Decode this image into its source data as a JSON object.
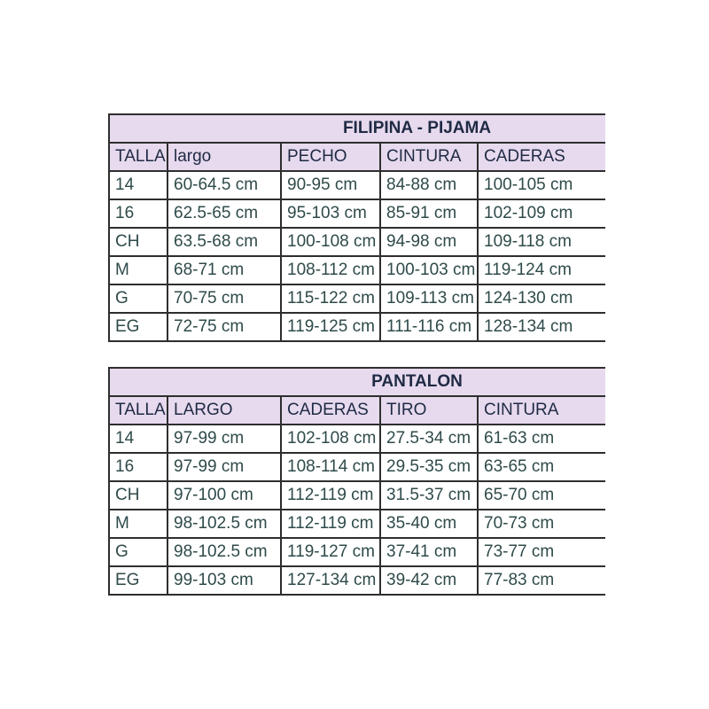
{
  "colors": {
    "background": "#ffffff",
    "header_fill": "#e7daee",
    "header_text": "#1f2a44",
    "data_text": "#2f4a4a",
    "border": "#2e2e2e"
  },
  "chart_data": [
    {
      "type": "table",
      "title": "FILIPINA - PIJAMA",
      "columns": [
        "TALLA",
        "largo",
        "PECHO",
        "CINTURA",
        "CADERAS"
      ],
      "rows": [
        [
          "14",
          "60-64.5 cm",
          "90-95 cm",
          "84-88 cm",
          "100-105 cm"
        ],
        [
          "16",
          "62.5-65 cm",
          "95-103 cm",
          "85-91 cm",
          "102-109 cm"
        ],
        [
          "CH",
          "63.5-68 cm",
          "100-108 cm",
          "94-98 cm",
          "109-118 cm"
        ],
        [
          "M",
          "68-71 cm",
          "108-112 cm",
          "100-103 cm",
          "119-124 cm"
        ],
        [
          "G",
          "70-75 cm",
          "115-122 cm",
          "109-113 cm",
          "124-130 cm"
        ],
        [
          "EG",
          "72-75 cm",
          "119-125 cm",
          "111-116 cm",
          "128-134 cm"
        ]
      ],
      "layout_hints": {
        "header_band": "lavender",
        "grid": "on",
        "unit": "cm"
      }
    },
    {
      "type": "table",
      "title": "PANTALON",
      "columns": [
        "TALLA",
        "LARGO",
        "CADERAS",
        "TIRO",
        "CINTURA"
      ],
      "rows": [
        [
          "14",
          "97-99 cm",
          "102-108 cm",
          "27.5-34 cm",
          "61-63 cm"
        ],
        [
          "16",
          "97-99 cm",
          "108-114 cm",
          "29.5-35 cm",
          "63-65 cm"
        ],
        [
          "CH",
          "97-100 cm",
          "112-119 cm",
          "31.5-37 cm",
          "65-70 cm"
        ],
        [
          "M",
          "98-102.5 cm",
          "112-119 cm",
          "35-40 cm",
          "70-73 cm"
        ],
        [
          "G",
          "98-102.5 cm",
          "119-127 cm",
          "37-41 cm",
          "73-77 cm"
        ],
        [
          "EG",
          "99-103 cm",
          "127-134 cm",
          "39-42 cm",
          "77-83 cm"
        ]
      ],
      "layout_hints": {
        "header_band": "lavender",
        "grid": "on",
        "unit": "cm"
      }
    }
  ]
}
